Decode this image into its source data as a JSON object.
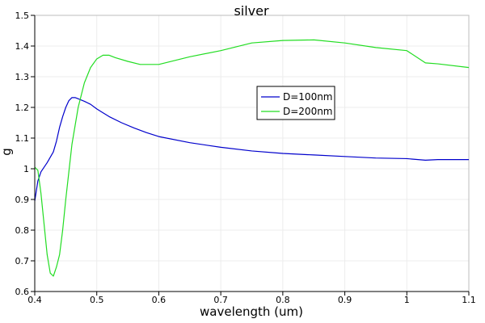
{
  "chart_data": {
    "type": "line",
    "title": "silver",
    "xlabel": "wavelength (um)",
    "ylabel": "g",
    "xlim": [
      0.4,
      1.1
    ],
    "ylim": [
      0.6,
      1.5
    ],
    "xticks": [
      "0.4",
      "0.5",
      "0.6",
      "0.7",
      "0.8",
      "0.9",
      "1",
      "1.1"
    ],
    "yticks": [
      "0.6",
      "0.7",
      "0.8",
      "0.9",
      "1",
      "1.1",
      "1.2",
      "1.3",
      "1.4",
      "1.5"
    ],
    "grid": true,
    "legend_position": "upper-right-center",
    "series": [
      {
        "name": "D=100nm",
        "color": "#0000cc",
        "x": [
          0.4,
          0.405,
          0.41,
          0.42,
          0.43,
          0.435,
          0.44,
          0.445,
          0.45,
          0.455,
          0.46,
          0.465,
          0.47,
          0.48,
          0.49,
          0.5,
          0.52,
          0.54,
          0.56,
          0.58,
          0.6,
          0.65,
          0.7,
          0.75,
          0.8,
          0.85,
          0.9,
          0.95,
          1.0,
          1.03,
          1.05,
          1.1
        ],
        "y": [
          0.895,
          0.96,
          0.99,
          1.02,
          1.055,
          1.09,
          1.135,
          1.17,
          1.2,
          1.222,
          1.232,
          1.232,
          1.228,
          1.22,
          1.21,
          1.195,
          1.17,
          1.15,
          1.133,
          1.118,
          1.105,
          1.085,
          1.07,
          1.058,
          1.05,
          1.045,
          1.04,
          1.035,
          1.033,
          1.028,
          1.03,
          1.03
        ]
      },
      {
        "name": "D=200nm",
        "color": "#22dd22",
        "x": [
          0.4,
          0.405,
          0.41,
          0.415,
          0.42,
          0.425,
          0.43,
          0.435,
          0.44,
          0.445,
          0.45,
          0.455,
          0.46,
          0.47,
          0.48,
          0.49,
          0.5,
          0.51,
          0.52,
          0.53,
          0.55,
          0.57,
          0.6,
          0.65,
          0.7,
          0.75,
          0.8,
          0.85,
          0.9,
          0.95,
          1.0,
          1.03,
          1.05,
          1.1
        ],
        "y": [
          1.005,
          0.995,
          0.92,
          0.82,
          0.72,
          0.66,
          0.65,
          0.68,
          0.72,
          0.8,
          0.9,
          0.99,
          1.08,
          1.2,
          1.28,
          1.33,
          1.358,
          1.37,
          1.37,
          1.362,
          1.35,
          1.34,
          1.34,
          1.365,
          1.385,
          1.41,
          1.418,
          1.42,
          1.41,
          1.395,
          1.385,
          1.345,
          1.342,
          1.33
        ]
      }
    ]
  }
}
